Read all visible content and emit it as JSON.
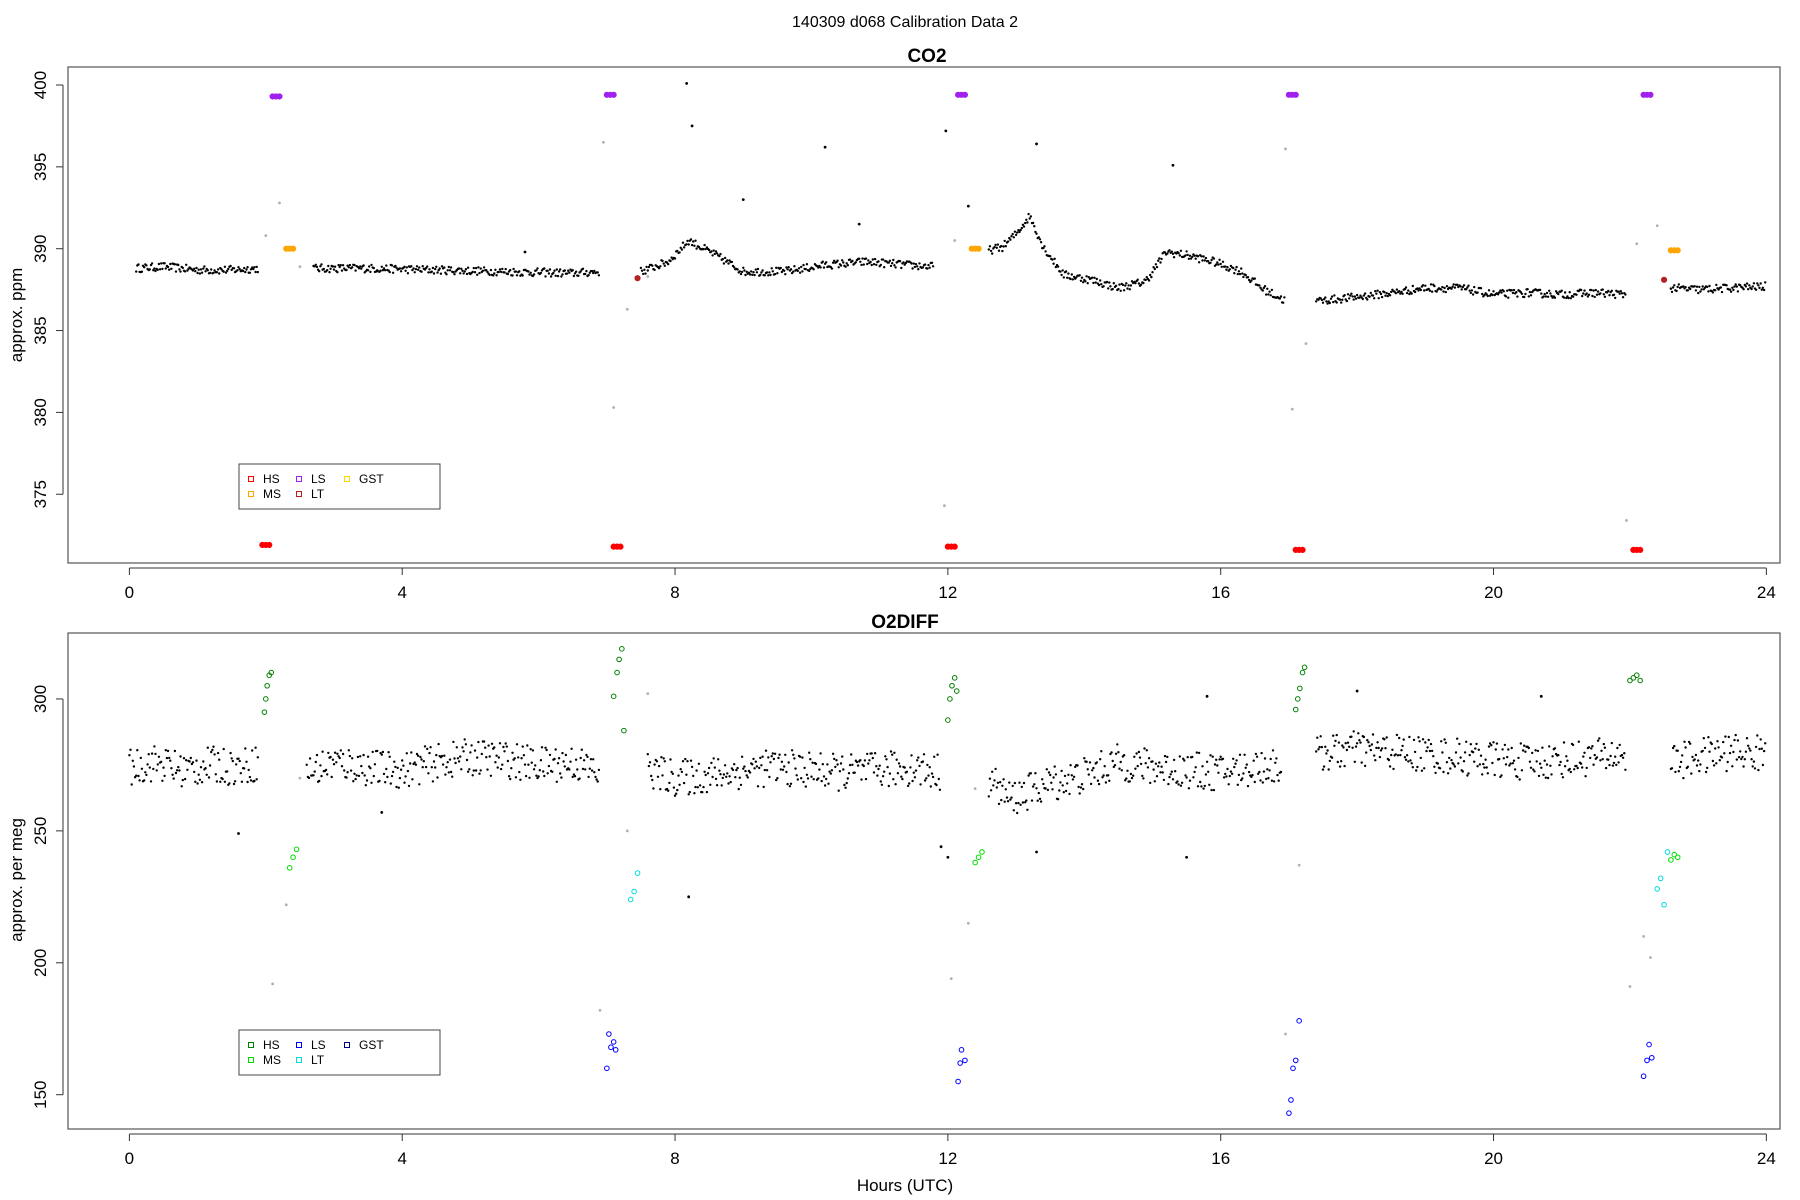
{
  "figure_title": "140309   d068   Calibration Data 2",
  "colors": {
    "baseline": "#000000",
    "excluded": "#b0b0b0",
    "co2_HS": "#ff0000",
    "co2_MS": "#ffa500",
    "co2_LS": "#a020f0",
    "co2_LT": "#b22222",
    "co2_GST": "#ffd700",
    "o2_HS": "#008000",
    "o2_MS": "#00dd00",
    "o2_LS": "#0000ff",
    "o2_LT": "#00dddd",
    "o2_GST": "#00008b"
  },
  "chart_data": [
    {
      "type": "scatter",
      "title": "CO2",
      "xlabel": "",
      "ylabel": "approx. ppm",
      "xlim": [
        -0.9,
        24.2
      ],
      "ylim": [
        370.8,
        401.1
      ],
      "xticks": [
        0,
        4,
        8,
        12,
        16,
        20,
        24
      ],
      "yticks": [
        375,
        380,
        385,
        390,
        395,
        400
      ],
      "legend": {
        "position": "bottom-left",
        "items": [
          "HS",
          "MS",
          "LS",
          "LT",
          "GST"
        ]
      },
      "baseline_segments": [
        {
          "x": [
            0.1,
            0.5,
            1.0,
            1.5,
            1.9
          ],
          "y": [
            388.8,
            388.9,
            388.7,
            388.7,
            388.8
          ]
        },
        {
          "x": [
            2.7,
            3.5,
            4.5,
            5.5,
            6.5,
            6.9
          ],
          "y": [
            388.8,
            388.8,
            388.7,
            388.6,
            388.5,
            388.6
          ]
        },
        {
          "x": [
            7.5,
            7.9,
            8.2,
            8.6,
            9.0,
            9.6,
            10.2,
            10.8,
            11.4,
            11.8
          ],
          "y": [
            388.6,
            389.2,
            390.5,
            389.6,
            388.6,
            388.6,
            389.0,
            389.2,
            389.0,
            388.9
          ]
        },
        {
          "x": [
            12.6,
            12.8,
            13.0,
            13.2,
            13.4,
            13.7,
            14.1,
            14.5,
            14.9,
            15.2,
            15.5,
            15.9,
            16.3,
            16.6,
            16.95
          ],
          "y": [
            389.9,
            390.1,
            390.9,
            392.0,
            390.1,
            388.4,
            388.1,
            387.6,
            388.0,
            389.8,
            389.6,
            389.2,
            388.6,
            387.6,
            386.8
          ]
        },
        {
          "x": [
            17.4,
            17.9,
            18.5,
            19.0,
            19.5,
            20.0,
            20.5,
            21.0,
            21.5,
            21.95
          ],
          "y": [
            386.8,
            387.0,
            387.3,
            387.6,
            387.6,
            387.2,
            387.3,
            387.2,
            387.3,
            387.2
          ]
        },
        {
          "x": [
            22.6,
            23.0,
            23.5,
            24.0
          ],
          "y": [
            387.6,
            387.5,
            387.6,
            387.7
          ]
        }
      ],
      "outliers": [
        {
          "x": 8.17,
          "y": 400.1
        },
        {
          "x": 8.25,
          "y": 397.5
        },
        {
          "x": 9.0,
          "y": 393.0
        },
        {
          "x": 10.2,
          "y": 396.2
        },
        {
          "x": 11.97,
          "y": 397.2
        },
        {
          "x": 13.3,
          "y": 396.4
        },
        {
          "x": 15.3,
          "y": 395.1
        },
        {
          "x": 10.7,
          "y": 391.5
        },
        {
          "x": 5.8,
          "y": 389.8
        },
        {
          "x": 12.3,
          "y": 392.6
        }
      ],
      "excluded_points": [
        {
          "x": 2.0,
          "y": 390.8
        },
        {
          "x": 2.2,
          "y": 392.8
        },
        {
          "x": 2.5,
          "y": 388.9
        },
        {
          "x": 6.95,
          "y": 396.5
        },
        {
          "x": 7.1,
          "y": 380.3
        },
        {
          "x": 7.3,
          "y": 386.3
        },
        {
          "x": 7.6,
          "y": 388.3
        },
        {
          "x": 11.95,
          "y": 374.3
        },
        {
          "x": 12.1,
          "y": 390.5
        },
        {
          "x": 16.95,
          "y": 396.1
        },
        {
          "x": 17.05,
          "y": 380.2
        },
        {
          "x": 17.25,
          "y": 384.2
        },
        {
          "x": 21.95,
          "y": 373.4
        },
        {
          "x": 22.1,
          "y": 390.3
        },
        {
          "x": 22.4,
          "y": 391.4
        },
        {
          "x": 22.6,
          "y": 387.6
        }
      ],
      "series": [
        {
          "name": "HS",
          "color_key": "co2_HS",
          "points": [
            {
              "x": 1.95,
              "y": 371.9
            },
            {
              "x": 2.0,
              "y": 371.9
            },
            {
              "x": 2.05,
              "y": 371.9
            },
            {
              "x": 7.1,
              "y": 371.8
            },
            {
              "x": 7.15,
              "y": 371.8
            },
            {
              "x": 7.2,
              "y": 371.8
            },
            {
              "x": 12.0,
              "y": 371.8
            },
            {
              "x": 12.05,
              "y": 371.8
            },
            {
              "x": 12.1,
              "y": 371.8
            },
            {
              "x": 17.1,
              "y": 371.6
            },
            {
              "x": 17.15,
              "y": 371.6
            },
            {
              "x": 17.2,
              "y": 371.6
            },
            {
              "x": 22.05,
              "y": 371.6
            },
            {
              "x": 22.1,
              "y": 371.6
            },
            {
              "x": 22.15,
              "y": 371.6
            }
          ]
        },
        {
          "name": "MS",
          "color_key": "co2_MS",
          "points": [
            {
              "x": 2.3,
              "y": 390.0
            },
            {
              "x": 2.35,
              "y": 390.0
            },
            {
              "x": 2.4,
              "y": 390.0
            },
            {
              "x": 12.35,
              "y": 390.0
            },
            {
              "x": 12.4,
              "y": 390.0
            },
            {
              "x": 12.45,
              "y": 390.0
            },
            {
              "x": 22.6,
              "y": 389.9
            },
            {
              "x": 22.65,
              "y": 389.9
            },
            {
              "x": 22.7,
              "y": 389.9
            }
          ]
        },
        {
          "name": "LS",
          "color_key": "co2_LS",
          "points": [
            {
              "x": 2.1,
              "y": 399.3
            },
            {
              "x": 2.15,
              "y": 399.3
            },
            {
              "x": 2.2,
              "y": 399.3
            },
            {
              "x": 7.0,
              "y": 399.4
            },
            {
              "x": 7.05,
              "y": 399.4
            },
            {
              "x": 7.1,
              "y": 399.4
            },
            {
              "x": 12.15,
              "y": 399.4
            },
            {
              "x": 12.2,
              "y": 399.4
            },
            {
              "x": 12.25,
              "y": 399.4
            },
            {
              "x": 17.0,
              "y": 399.4
            },
            {
              "x": 17.05,
              "y": 399.4
            },
            {
              "x": 17.1,
              "y": 399.4
            },
            {
              "x": 22.2,
              "y": 399.4
            },
            {
              "x": 22.25,
              "y": 399.4
            },
            {
              "x": 22.3,
              "y": 399.4
            }
          ]
        },
        {
          "name": "LT",
          "color_key": "co2_LT",
          "points": [
            {
              "x": 7.45,
              "y": 388.2
            },
            {
              "x": 22.5,
              "y": 388.1
            }
          ]
        },
        {
          "name": "GST",
          "color_key": "co2_GST",
          "points": []
        }
      ]
    },
    {
      "type": "scatter",
      "title": "O2DIFF",
      "xlabel": "Hours (UTC)",
      "ylabel": "approx. per meg",
      "xlim": [
        -0.9,
        24.2
      ],
      "ylim": [
        137,
        325
      ],
      "xticks": [
        0,
        4,
        8,
        12,
        16,
        20,
        24
      ],
      "yticks": [
        150,
        200,
        250,
        300
      ],
      "legend": {
        "position": "bottom-left",
        "items": [
          "HS",
          "MS",
          "LS",
          "LT",
          "GST"
        ]
      },
      "baseline_segments": [
        {
          "x": [
            0.0,
            0.4,
            0.8,
            1.2,
            1.6,
            1.9
          ],
          "y": [
            274,
            276,
            273,
            275,
            274,
            276
          ]
        },
        {
          "x": [
            2.6,
            3.0,
            3.5,
            4.0,
            4.5,
            5.0,
            5.5,
            6.0,
            6.5,
            6.9
          ],
          "y": [
            272,
            276,
            274,
            273,
            276,
            278,
            277,
            275,
            276,
            272
          ]
        },
        {
          "x": [
            7.6,
            8.0,
            8.5,
            9.0,
            9.5,
            10.0,
            10.5,
            11.0,
            11.5,
            11.9
          ],
          "y": [
            273,
            270,
            271,
            273,
            274,
            273,
            272,
            273,
            274,
            272
          ]
        },
        {
          "x": [
            12.6,
            12.9,
            13.2,
            13.5,
            14.0,
            14.5,
            15.0,
            15.5,
            16.0,
            16.5,
            16.9
          ],
          "y": [
            270,
            262,
            265,
            268,
            271,
            276,
            274,
            273,
            272,
            274,
            275
          ]
        },
        {
          "x": [
            17.4,
            18.0,
            18.5,
            19.0,
            19.5,
            20.0,
            20.5,
            21.0,
            21.5,
            21.95
          ],
          "y": [
            279,
            281,
            280,
            279,
            278,
            277,
            276,
            277,
            278,
            279
          ]
        },
        {
          "x": [
            22.6,
            23.0,
            23.5,
            24.0
          ],
          "y": [
            276,
            278,
            280,
            279
          ]
        }
      ],
      "outliers": [
        {
          "x": 1.6,
          "y": 249
        },
        {
          "x": 8.2,
          "y": 225
        },
        {
          "x": 11.9,
          "y": 244
        },
        {
          "x": 12.0,
          "y": 240
        },
        {
          "x": 13.3,
          "y": 242
        },
        {
          "x": 15.5,
          "y": 240
        },
        {
          "x": 3.7,
          "y": 257
        },
        {
          "x": 18.0,
          "y": 303
        },
        {
          "x": 20.7,
          "y": 301
        },
        {
          "x": 15.8,
          "y": 301
        }
      ],
      "excluded_points": [
        {
          "x": 2.1,
          "y": 192
        },
        {
          "x": 2.3,
          "y": 222
        },
        {
          "x": 6.9,
          "y": 182
        },
        {
          "x": 7.3,
          "y": 250
        },
        {
          "x": 7.6,
          "y": 302
        },
        {
          "x": 12.05,
          "y": 194
        },
        {
          "x": 12.3,
          "y": 215
        },
        {
          "x": 12.4,
          "y": 266
        },
        {
          "x": 16.95,
          "y": 173
        },
        {
          "x": 17.15,
          "y": 237
        },
        {
          "x": 22.0,
          "y": 191
        },
        {
          "x": 22.2,
          "y": 210
        },
        {
          "x": 22.3,
          "y": 202
        },
        {
          "x": 2.5,
          "y": 270
        }
      ],
      "series": [
        {
          "name": "HS",
          "color_key": "o2_HS",
          "points": [
            {
              "x": 1.98,
              "y": 295
            },
            {
              "x": 2.0,
              "y": 300
            },
            {
              "x": 2.02,
              "y": 305
            },
            {
              "x": 2.05,
              "y": 309
            },
            {
              "x": 2.08,
              "y": 310
            },
            {
              "x": 7.1,
              "y": 301
            },
            {
              "x": 7.15,
              "y": 310
            },
            {
              "x": 7.18,
              "y": 315
            },
            {
              "x": 7.22,
              "y": 319
            },
            {
              "x": 7.25,
              "y": 288
            },
            {
              "x": 12.0,
              "y": 292
            },
            {
              "x": 12.03,
              "y": 300
            },
            {
              "x": 12.06,
              "y": 305
            },
            {
              "x": 12.1,
              "y": 308
            },
            {
              "x": 12.13,
              "y": 303
            },
            {
              "x": 17.1,
              "y": 296
            },
            {
              "x": 17.13,
              "y": 300
            },
            {
              "x": 17.16,
              "y": 304
            },
            {
              "x": 17.2,
              "y": 310
            },
            {
              "x": 17.23,
              "y": 312
            },
            {
              "x": 22.0,
              "y": 307
            },
            {
              "x": 22.05,
              "y": 308
            },
            {
              "x": 22.1,
              "y": 309
            },
            {
              "x": 22.15,
              "y": 307
            }
          ]
        },
        {
          "name": "MS",
          "color_key": "o2_MS",
          "points": [
            {
              "x": 2.35,
              "y": 236
            },
            {
              "x": 2.4,
              "y": 240
            },
            {
              "x": 2.45,
              "y": 243
            },
            {
              "x": 12.4,
              "y": 238
            },
            {
              "x": 12.45,
              "y": 240
            },
            {
              "x": 12.5,
              "y": 242
            },
            {
              "x": 22.6,
              "y": 239
            },
            {
              "x": 22.65,
              "y": 241
            },
            {
              "x": 22.7,
              "y": 240
            }
          ]
        },
        {
          "name": "LS",
          "color_key": "o2_LS",
          "points": [
            {
              "x": 7.0,
              "y": 160
            },
            {
              "x": 7.03,
              "y": 173
            },
            {
              "x": 7.06,
              "y": 168
            },
            {
              "x": 7.1,
              "y": 170
            },
            {
              "x": 7.13,
              "y": 167
            },
            {
              "x": 12.15,
              "y": 155
            },
            {
              "x": 12.18,
              "y": 162
            },
            {
              "x": 12.2,
              "y": 167
            },
            {
              "x": 12.25,
              "y": 163
            },
            {
              "x": 17.0,
              "y": 143
            },
            {
              "x": 17.03,
              "y": 148
            },
            {
              "x": 17.06,
              "y": 160
            },
            {
              "x": 17.1,
              "y": 163
            },
            {
              "x": 17.15,
              "y": 178
            },
            {
              "x": 22.2,
              "y": 157
            },
            {
              "x": 22.25,
              "y": 163
            },
            {
              "x": 22.28,
              "y": 169
            },
            {
              "x": 22.32,
              "y": 164
            }
          ]
        },
        {
          "name": "LT",
          "color_key": "o2_LT",
          "points": [
            {
              "x": 7.35,
              "y": 224
            },
            {
              "x": 7.4,
              "y": 227
            },
            {
              "x": 7.45,
              "y": 234
            },
            {
              "x": 22.4,
              "y": 228
            },
            {
              "x": 22.45,
              "y": 232
            },
            {
              "x": 22.5,
              "y": 222
            },
            {
              "x": 22.55,
              "y": 242
            }
          ]
        },
        {
          "name": "GST",
          "color_key": "o2_GST",
          "points": []
        }
      ]
    }
  ]
}
